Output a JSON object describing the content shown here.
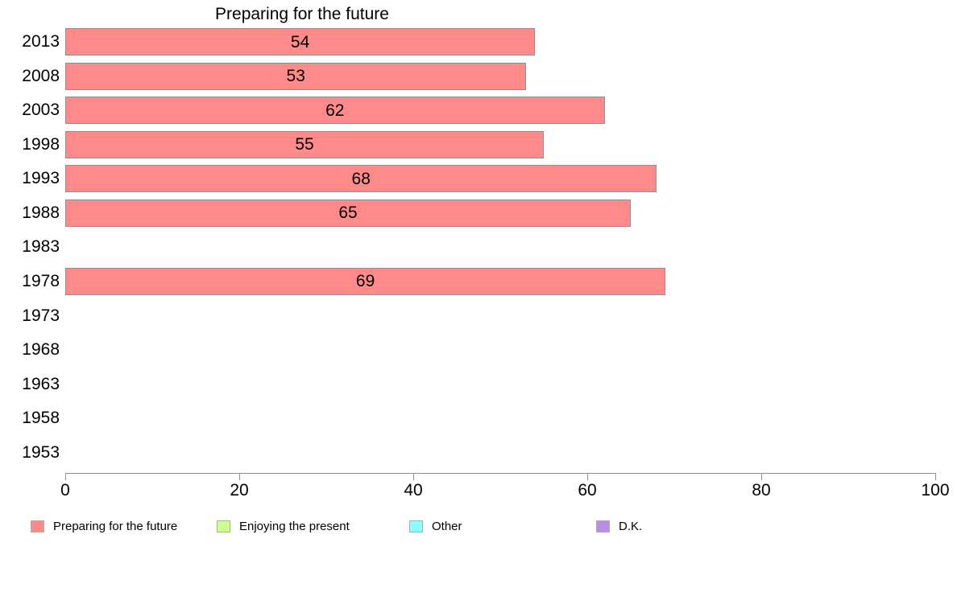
{
  "chart_data": {
    "type": "bar",
    "orientation": "horizontal",
    "title": "Preparing for the future",
    "categories": [
      "2013",
      "2008",
      "2003",
      "1998",
      "1993",
      "1988",
      "1983",
      "1978",
      "1973",
      "1968",
      "1963",
      "1958",
      "1953"
    ],
    "values": [
      54,
      53,
      62,
      55,
      68,
      65,
      null,
      69,
      null,
      null,
      null,
      null,
      null
    ],
    "xlabel": "",
    "ylabel": "",
    "xlim": [
      0,
      100
    ],
    "x_ticks": [
      0,
      20,
      40,
      60,
      80,
      100
    ],
    "grid": false,
    "legend_position": "bottom",
    "colors": {
      "bar_fill": "#FF8A8A",
      "bar_border": "#8F8F8F",
      "axis": "#8F8F8F",
      "text": "#000000",
      "background": "#FFFFFF"
    },
    "legend": [
      {
        "label": "Preparing for the future",
        "color": "#FF8A8A"
      },
      {
        "label": "Enjoying the present",
        "color": "#CCFF8F"
      },
      {
        "label": "Other",
        "color": "#8AFFFF"
      },
      {
        "label": "D.K.",
        "color": "#BA8BE8"
      }
    ]
  }
}
